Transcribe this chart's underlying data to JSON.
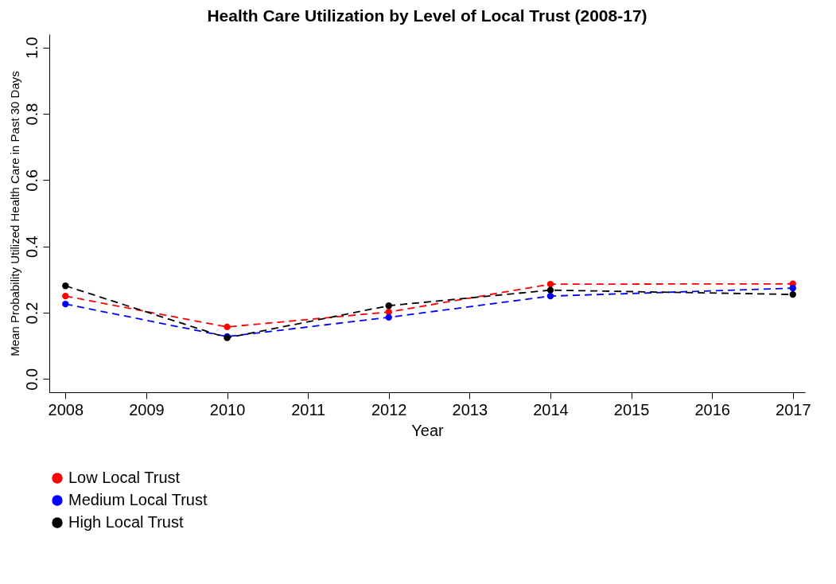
{
  "chart_data": {
    "type": "line",
    "title": "Health Care Utilization by Level of Local Trust (2008-17)",
    "xlabel": "Year",
    "ylabel": "Mean Probability Utilized Health Care in Past 30 Days",
    "x": [
      2008,
      2010,
      2012,
      2014,
      2017
    ],
    "series": [
      {
        "name": "Low Local Trust",
        "color": "#ff0000",
        "values": [
          0.25,
          0.157,
          0.202,
          0.286,
          0.287
        ]
      },
      {
        "name": "Medium Local Trust",
        "color": "#0000ff",
        "values": [
          0.226,
          0.128,
          0.186,
          0.25,
          0.274
        ]
      },
      {
        "name": "High Local Trust",
        "color": "#000000",
        "values": [
          0.281,
          0.124,
          0.221,
          0.268,
          0.255
        ]
      }
    ],
    "xlim": [
      2007.8,
      2017.15
    ],
    "xticks": [
      2008,
      2009,
      2010,
      2011,
      2012,
      2013,
      2014,
      2015,
      2016,
      2017
    ],
    "ylim": [
      -0.04,
      1.04
    ],
    "yticks": [
      {
        "value": 0,
        "label": "0.0"
      },
      0.2,
      0.4,
      0.6,
      0.8,
      {
        "value": 1,
        "label": "1.0"
      }
    ],
    "grid": false,
    "legend": "bottom",
    "marker": "circle",
    "line_style": "dashed"
  }
}
